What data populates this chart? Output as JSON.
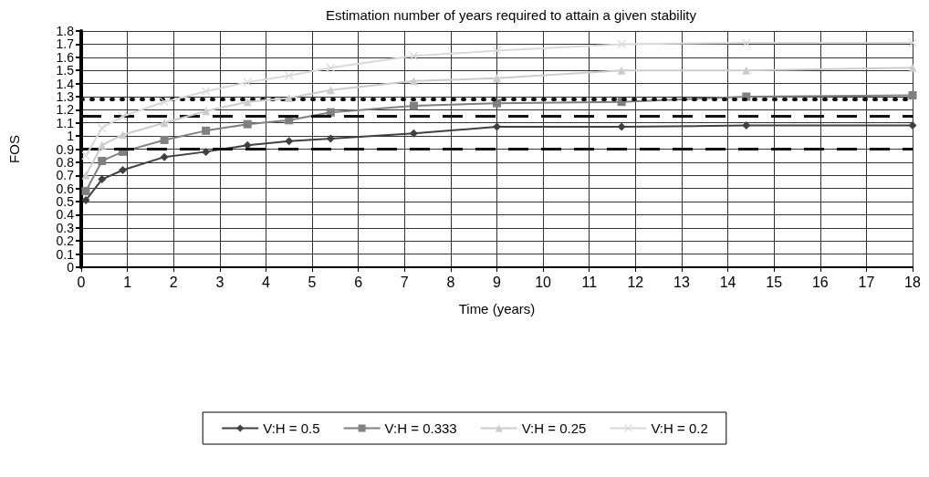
{
  "chart_data": {
    "type": "line",
    "title": "Estimation number of years required to attain a given stability",
    "xlabel": "Time (years)",
    "ylabel": "FOS",
    "x": [
      0.1,
      0.45,
      0.9,
      1.8,
      2.7,
      3.6,
      4.5,
      5.4,
      7.2,
      9,
      11.7,
      14.4,
      18
    ],
    "series": [
      {
        "name": "V:H = 0.5",
        "color": "#404040",
        "marker": "diamond",
        "values": [
          0.51,
          0.67,
          0.74,
          0.84,
          0.88,
          0.93,
          0.96,
          0.98,
          1.02,
          1.07,
          1.07,
          1.08,
          1.08
        ]
      },
      {
        "name": "V:H = 0.333",
        "color": "#808080",
        "marker": "square",
        "values": [
          0.58,
          0.81,
          0.88,
          0.97,
          1.04,
          1.09,
          1.12,
          1.18,
          1.23,
          1.25,
          1.26,
          1.3,
          1.31
        ]
      },
      {
        "name": "V:H = 0.25",
        "color": "#cccccc",
        "marker": "triangle",
        "values": [
          0.7,
          0.93,
          1.01,
          1.1,
          1.19,
          1.26,
          1.29,
          1.35,
          1.42,
          1.44,
          1.5,
          1.5,
          1.52
        ]
      },
      {
        "name": "V:H = 0.2",
        "color": "#d9d9d9",
        "marker": "cross",
        "values": [
          0.85,
          1.06,
          1.15,
          1.26,
          1.34,
          1.41,
          1.46,
          1.52,
          1.61,
          1.65,
          1.7,
          1.71,
          1.71
        ]
      }
    ],
    "xlim": [
      0,
      18
    ],
    "xticks": [
      0,
      1,
      2,
      3,
      4,
      5,
      6,
      7,
      8,
      9,
      10,
      11,
      12,
      13,
      14,
      15,
      16,
      17,
      18
    ],
    "ylim": [
      0,
      1.8
    ],
    "yticks": [
      0,
      0.1,
      0.2,
      0.3,
      0.4,
      0.5,
      0.6,
      0.7,
      0.8,
      0.9,
      1,
      1.1,
      1.2,
      1.3,
      1.4,
      1.5,
      1.6,
      1.7,
      1.8
    ],
    "ref_lines": [
      {
        "axis": "y",
        "value": 1.28,
        "color": "#111111",
        "line_style": "dotted"
      },
      {
        "axis": "y",
        "value": 1.15,
        "color": "#111111",
        "line_style": "dashed"
      },
      {
        "axis": "y",
        "value": 0.9,
        "color": "#111111",
        "line_style": "dashed"
      }
    ],
    "grid": true,
    "legend": "bottom",
    "line_style": "solid"
  }
}
